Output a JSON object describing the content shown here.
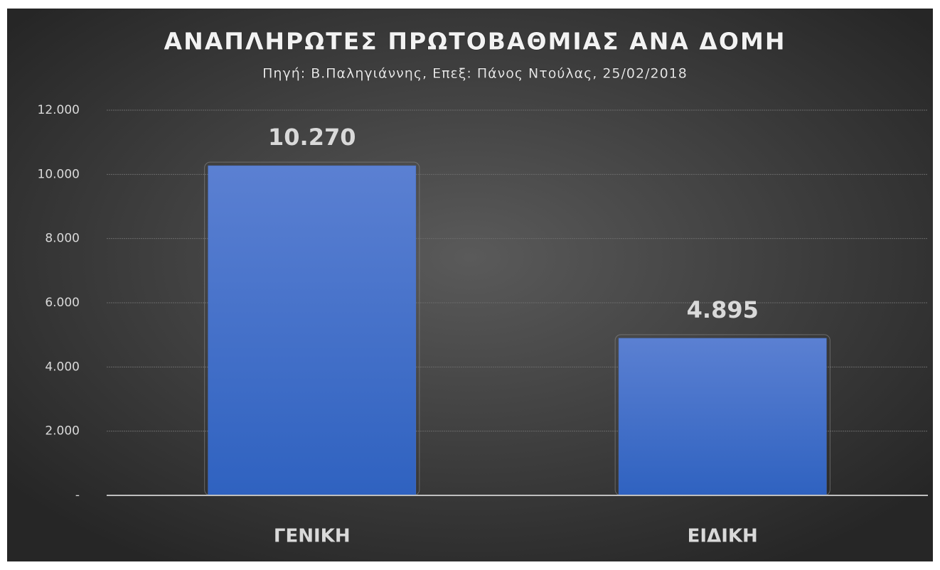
{
  "chart_data": {
    "type": "bar",
    "title": "ΑΝΑΠΛΗΡΩΤΕΣ ΠΡΩΤΟΒΑΘΜΙΑΣ ΑΝΑ ΔΟΜΗ",
    "subtitle": "Πηγή: Β.Παληγιάννης, Επεξ: Πάνος Ντούλας, 25/02/2018",
    "categories": [
      "ΓΕΝΙΚΗ",
      "ΕΙΔΙΚΗ"
    ],
    "values": [
      10270,
      4895
    ],
    "value_labels": [
      "10.270",
      "4.895"
    ],
    "color": "#4a74cc",
    "ylim": [
      0,
      12000
    ],
    "yticks": [
      {
        "value": 0,
        "label": "-"
      },
      {
        "value": 2000,
        "label": "2.000"
      },
      {
        "value": 4000,
        "label": "4.000"
      },
      {
        "value": 6000,
        "label": "6.000"
      },
      {
        "value": 8000,
        "label": "8.000"
      },
      {
        "value": 10000,
        "label": "10.000"
      },
      {
        "value": 12000,
        "label": "12.000"
      }
    ],
    "grid": true
  }
}
